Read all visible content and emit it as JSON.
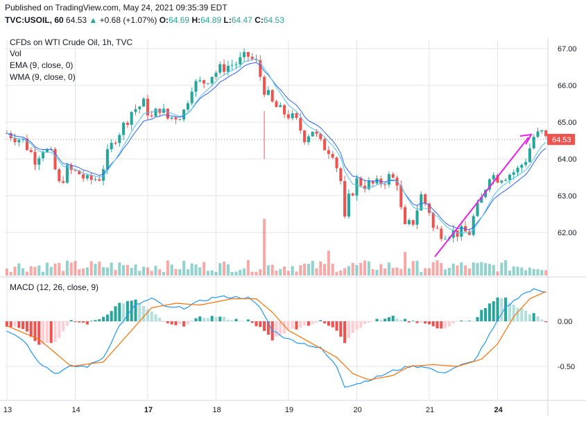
{
  "header": {
    "published": "Published on TradingView.com, May 24, 2021 09:35:39 EDT",
    "symbol": "TVC:USOIL, 60",
    "last": "64.53",
    "change_arrow": "▲",
    "change": "+0.68 (+1.07%)",
    "o_label": "O:",
    "o_value": "64.69",
    "h_label": "H:",
    "h_value": "64.89",
    "l_label": "L:",
    "l_value": "64.47",
    "c_label": "C:",
    "c_value": "64.53"
  },
  "legend": {
    "title": "CFDs on WTI Crude Oil, 1h, TVC",
    "vol": "Vol",
    "ema": "EMA (9, close, 0)",
    "wma": "WMA (9, close, 0)",
    "macd": "MACD (12, 26, close, 9)"
  },
  "price_badge": "64.53",
  "colors": {
    "up": "#26a69a",
    "down": "#ef5350",
    "ema": "#2962ff",
    "wma": "#2196f3",
    "macd": "#2196f3",
    "signal": "#ff6d00",
    "arrow": "#e91ee6",
    "grid": "#e0e3eb"
  },
  "chart_data": [
    {
      "type": "candlestick",
      "title": "CFDs on WTI Crude Oil, 1h, TVC",
      "x_ticks": [
        "13",
        "14",
        "17",
        "18",
        "19",
        "20",
        "21",
        "24"
      ],
      "y_ticks": [
        "67.00",
        "66.00",
        "65.00",
        "64.00",
        "63.00",
        "62.00"
      ],
      "ylim": [
        61.3,
        67.3
      ],
      "close_path": [
        [
          0,
          64.7
        ],
        [
          4,
          64.5
        ],
        [
          7,
          64.0
        ],
        [
          9,
          64.3
        ],
        [
          11,
          64.1
        ],
        [
          13,
          63.3
        ],
        [
          15,
          63.7
        ],
        [
          18,
          63.6
        ],
        [
          20,
          63.4
        ],
        [
          23,
          63.5
        ],
        [
          25,
          64.1
        ],
        [
          27,
          64.6
        ],
        [
          29,
          64.9
        ],
        [
          31,
          65.3
        ],
        [
          34,
          65.5
        ],
        [
          36,
          65.1
        ],
        [
          38,
          65.4
        ],
        [
          40,
          65.1
        ],
        [
          43,
          65.2
        ],
        [
          44,
          65.3
        ],
        [
          46,
          66.0
        ],
        [
          49,
          66.1
        ],
        [
          51,
          66.3
        ],
        [
          54,
          66.5
        ],
        [
          57,
          66.6
        ],
        [
          60,
          66.8
        ],
        [
          62,
          66.6
        ],
        [
          64,
          65.9
        ],
        [
          66,
          65.5
        ],
        [
          68,
          65.3
        ],
        [
          70,
          65.2
        ],
        [
          72,
          65.0
        ],
        [
          74,
          64.6
        ],
        [
          76,
          64.8
        ],
        [
          78,
          64.4
        ],
        [
          81,
          64.2
        ],
        [
          83,
          63.4
        ],
        [
          84,
          62.3
        ],
        [
          85,
          62.9
        ],
        [
          87,
          63.4
        ],
        [
          89,
          63.3
        ],
        [
          92,
          63.3
        ],
        [
          95,
          63.5
        ],
        [
          97,
          63.4
        ],
        [
          98,
          62.6
        ],
        [
          99,
          62.1
        ],
        [
          101,
          62.3
        ],
        [
          103,
          63.0
        ],
        [
          105,
          62.6
        ],
        [
          106,
          62.1
        ],
        [
          108,
          62.0
        ],
        [
          111,
          62.0
        ],
        [
          113,
          62.0
        ],
        [
          115,
          62.0
        ],
        [
          116,
          62.4
        ],
        [
          118,
          62.9
        ],
        [
          120,
          63.6
        ],
        [
          122,
          63.5
        ],
        [
          125,
          63.6
        ],
        [
          127,
          63.7
        ],
        [
          129,
          64.0
        ],
        [
          131,
          64.6
        ],
        [
          133,
          64.7
        ],
        [
          134,
          64.53
        ]
      ],
      "indicators": [
        "EMA (9, close, 0)",
        "WMA (9, close, 0)"
      ]
    },
    {
      "type": "bar",
      "name": "Vol",
      "note": "relative volume per bar",
      "spike_bars": [
        [
          64,
          0.96
        ],
        [
          80,
          0.42
        ],
        [
          99,
          0.4
        ]
      ]
    },
    {
      "type": "line",
      "title": "MACD (12, 26, close, 9)",
      "y_ticks": [
        "0.00",
        "-0.50"
      ],
      "ylim": [
        -0.85,
        0.45
      ],
      "macd": [
        [
          0,
          -0.1
        ],
        [
          4,
          -0.2
        ],
        [
          8,
          -0.45
        ],
        [
          12,
          -0.58
        ],
        [
          16,
          -0.5
        ],
        [
          20,
          -0.5
        ],
        [
          24,
          -0.4
        ],
        [
          28,
          -0.05
        ],
        [
          32,
          0.18
        ],
        [
          36,
          0.25
        ],
        [
          40,
          0.15
        ],
        [
          44,
          0.15
        ],
        [
          48,
          0.22
        ],
        [
          52,
          0.27
        ],
        [
          56,
          0.27
        ],
        [
          60,
          0.26
        ],
        [
          63,
          0.15
        ],
        [
          66,
          -0.1
        ],
        [
          70,
          -0.2
        ],
        [
          74,
          -0.25
        ],
        [
          78,
          -0.3
        ],
        [
          82,
          -0.5
        ],
        [
          84,
          -0.72
        ],
        [
          88,
          -0.68
        ],
        [
          92,
          -0.62
        ],
        [
          96,
          -0.55
        ],
        [
          100,
          -0.5
        ],
        [
          104,
          -0.5
        ],
        [
          108,
          -0.58
        ],
        [
          112,
          -0.5
        ],
        [
          116,
          -0.45
        ],
        [
          120,
          -0.15
        ],
        [
          124,
          0.15
        ],
        [
          128,
          0.3
        ],
        [
          131,
          0.35
        ],
        [
          134,
          0.33
        ]
      ],
      "signal": [
        [
          0,
          -0.05
        ],
        [
          8,
          -0.2
        ],
        [
          16,
          -0.5
        ],
        [
          24,
          -0.45
        ],
        [
          30,
          -0.15
        ],
        [
          36,
          0.15
        ],
        [
          42,
          0.2
        ],
        [
          48,
          0.18
        ],
        [
          56,
          0.25
        ],
        [
          62,
          0.25
        ],
        [
          66,
          0.1
        ],
        [
          70,
          -0.1
        ],
        [
          76,
          -0.25
        ],
        [
          82,
          -0.4
        ],
        [
          86,
          -0.58
        ],
        [
          90,
          -0.65
        ],
        [
          96,
          -0.6
        ],
        [
          100,
          -0.5
        ],
        [
          106,
          -0.48
        ],
        [
          112,
          -0.5
        ],
        [
          118,
          -0.42
        ],
        [
          122,
          -0.25
        ],
        [
          126,
          0.05
        ],
        [
          130,
          0.25
        ],
        [
          134,
          0.33
        ]
      ]
    }
  ]
}
